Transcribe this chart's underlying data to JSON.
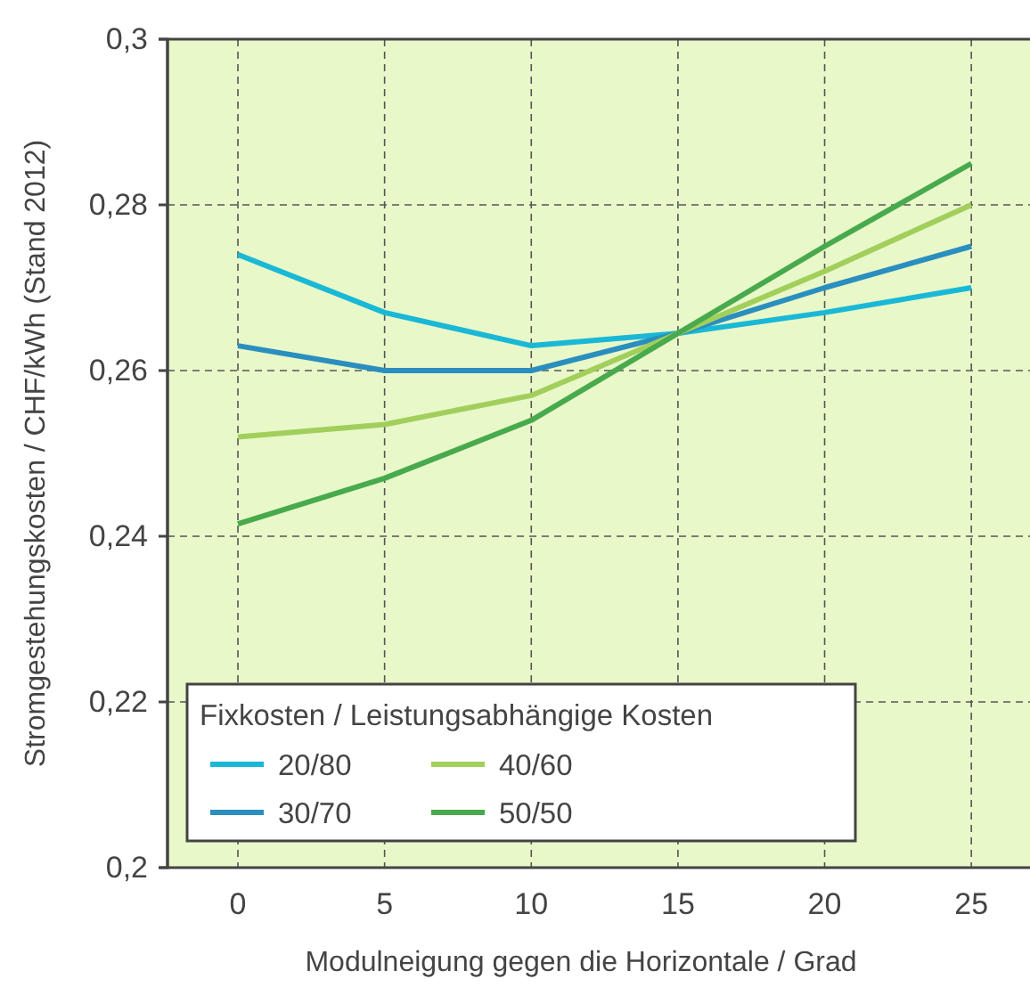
{
  "chart_data": {
    "type": "line",
    "xlabel": "Modulneigung gegen die Horizontale / Grad",
    "ylabel": "Stromgestehungskosten / CHF/kWh (Stand 2012)",
    "legend_title": "Fixkosten / Leistungsabhängige Kosten",
    "x": [
      0,
      5,
      10,
      15,
      20,
      25
    ],
    "series": [
      {
        "name": "20/80",
        "color": "#1ab8d6",
        "values": [
          0.274,
          0.267,
          0.263,
          0.2645,
          0.267,
          0.27
        ]
      },
      {
        "name": "30/70",
        "color": "#2a8fbf",
        "values": [
          0.263,
          0.26,
          0.26,
          0.2645,
          0.27,
          0.275
        ]
      },
      {
        "name": "40/60",
        "color": "#a2cf5c",
        "values": [
          0.252,
          0.2535,
          0.257,
          0.2645,
          0.272,
          0.28
        ]
      },
      {
        "name": "50/50",
        "color": "#48aa4c",
        "values": [
          0.2415,
          0.247,
          0.254,
          0.2645,
          0.275,
          0.285
        ]
      }
    ],
    "xlim": [
      -2.4,
      27
    ],
    "xticks": [
      0,
      5,
      10,
      15,
      20,
      25
    ],
    "ylim": [
      0.2,
      0.3
    ],
    "yticks": [
      {
        "value": 0.2,
        "label": "0,2"
      },
      {
        "value": 0.22,
        "label": "0,22"
      },
      {
        "value": 0.24,
        "label": "0,24"
      },
      {
        "value": 0.26,
        "label": "0,26"
      },
      {
        "value": 0.28,
        "label": "0,28"
      },
      {
        "value": 0.3,
        "label": "0,3"
      }
    ],
    "grid": true,
    "legend": "bottom left",
    "line_style": "solid",
    "marker": "none"
  }
}
